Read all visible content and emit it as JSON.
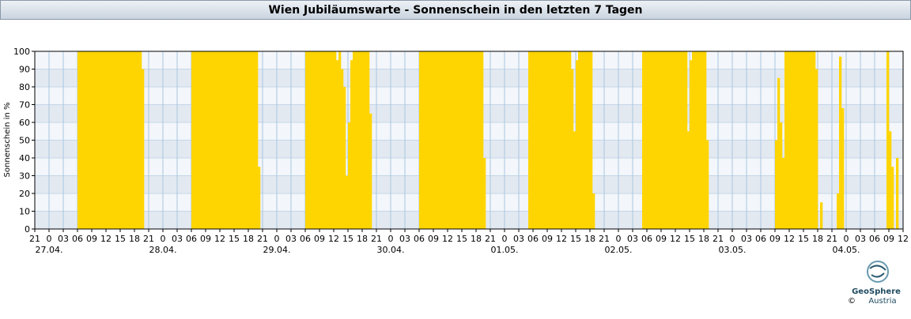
{
  "chart_data": {
    "type": "bar",
    "title": "Wien Jubiläumswarte - Sonnenschein in den letzten 7 Tagen",
    "y_label": "Sonnenschein in %",
    "color": "#ffd500",
    "grid": true,
    "ylim": [
      0,
      100
    ],
    "yticks": [
      0,
      10,
      20,
      30,
      40,
      50,
      60,
      70,
      80,
      90,
      100
    ],
    "xlim": [
      -3,
      180
    ],
    "xticks": [
      {
        "value": -3,
        "label": "21"
      },
      0,
      {
        "value": 3,
        "label": "03"
      },
      {
        "value": 6,
        "label": "06"
      },
      {
        "value": 9,
        "label": "09"
      },
      {
        "value": 12,
        "label": "12"
      },
      {
        "value": 15,
        "label": "15"
      },
      {
        "value": 18,
        "label": "18"
      },
      {
        "value": 21,
        "label": "21"
      },
      {
        "value": 24,
        "label": "0"
      },
      {
        "value": 27,
        "label": "03"
      },
      {
        "value": 30,
        "label": "06"
      },
      {
        "value": 33,
        "label": "09"
      },
      {
        "value": 36,
        "label": "12"
      },
      {
        "value": 39,
        "label": "15"
      },
      {
        "value": 42,
        "label": "18"
      },
      {
        "value": 45,
        "label": "21"
      },
      {
        "value": 48,
        "label": "0"
      },
      {
        "value": 51,
        "label": "03"
      },
      {
        "value": 54,
        "label": "06"
      },
      {
        "value": 57,
        "label": "09"
      },
      {
        "value": 60,
        "label": "12"
      },
      {
        "value": 63,
        "label": "15"
      },
      {
        "value": 66,
        "label": "18"
      },
      {
        "value": 69,
        "label": "21"
      },
      {
        "value": 72,
        "label": "0"
      },
      {
        "value": 75,
        "label": "03"
      },
      {
        "value": 78,
        "label": "06"
      },
      {
        "value": 81,
        "label": "09"
      },
      {
        "value": 84,
        "label": "12"
      },
      {
        "value": 87,
        "label": "15"
      },
      {
        "value": 90,
        "label": "18"
      },
      {
        "value": 93,
        "label": "21"
      },
      {
        "value": 96,
        "label": "0"
      },
      {
        "value": 99,
        "label": "03"
      },
      {
        "value": 102,
        "label": "06"
      },
      {
        "value": 105,
        "label": "09"
      },
      {
        "value": 108,
        "label": "12"
      },
      {
        "value": 111,
        "label": "15"
      },
      {
        "value": 114,
        "label": "18"
      },
      {
        "value": 117,
        "label": "21"
      },
      {
        "value": 120,
        "label": "0"
      },
      {
        "value": 123,
        "label": "03"
      },
      {
        "value": 126,
        "label": "06"
      },
      {
        "value": 129,
        "label": "09"
      },
      {
        "value": 132,
        "label": "12"
      },
      {
        "value": 135,
        "label": "15"
      },
      {
        "value": 138,
        "label": "18"
      },
      {
        "value": 141,
        "label": "21"
      },
      {
        "value": 144,
        "label": "0"
      },
      {
        "value": 147,
        "label": "03"
      },
      {
        "value": 150,
        "label": "06"
      },
      {
        "value": 153,
        "label": "09"
      },
      {
        "value": 156,
        "label": "12"
      },
      {
        "value": 159,
        "label": "15"
      },
      {
        "value": 162,
        "label": "18"
      },
      {
        "value": 165,
        "label": "21"
      },
      {
        "value": 168,
        "label": "0"
      },
      {
        "value": 171,
        "label": "03"
      },
      {
        "value": 174,
        "label": "06"
      },
      {
        "value": 177,
        "label": "09"
      },
      {
        "value": 180,
        "label": "12"
      }
    ],
    "date_labels": [
      {
        "value": 0,
        "label": "27.04."
      },
      {
        "value": 24,
        "label": "28.04."
      },
      {
        "value": 48,
        "label": "29.04."
      },
      {
        "value": 72,
        "label": "30.04."
      },
      {
        "value": 96,
        "label": "01.05."
      },
      {
        "value": 120,
        "label": "02.05."
      },
      {
        "value": 144,
        "label": "03.05."
      },
      {
        "value": 168,
        "label": "04.05."
      }
    ],
    "x": [
      6,
      6.5,
      7,
      7.5,
      8,
      8.5,
      9,
      9.5,
      10,
      10.5,
      11,
      11.5,
      12,
      12.5,
      13,
      13.5,
      14,
      14.5,
      15,
      15.5,
      16,
      16.5,
      17,
      17.5,
      18,
      18.5,
      19,
      19.5,
      30,
      30.5,
      31,
      31.5,
      32,
      32.5,
      33,
      33.5,
      34,
      34.5,
      35,
      35.5,
      36,
      36.5,
      37,
      37.5,
      38,
      38.5,
      39,
      39.5,
      40,
      40.5,
      41,
      41.5,
      42,
      42.5,
      43,
      43.5,
      44,
      54,
      54.5,
      55,
      55.5,
      56,
      56.5,
      57,
      57.5,
      58,
      58.5,
      59,
      59.5,
      60,
      60.5,
      61,
      61.5,
      62,
      62.5,
      63,
      63.5,
      64,
      64.5,
      65,
      65.5,
      66,
      66.5,
      67,
      67.5,
      78,
      78.5,
      79,
      79.5,
      80,
      80.5,
      81,
      81.5,
      82,
      82.5,
      83,
      83.5,
      84,
      84.5,
      85,
      85.5,
      86,
      86.5,
      87,
      87.5,
      88,
      88.5,
      89,
      89.5,
      90,
      90.5,
      91,
      91.5,
      101,
      101.5,
      102,
      102.5,
      103,
      103.5,
      104,
      104.5,
      105,
      105.5,
      106,
      106.5,
      107,
      107.5,
      108,
      108.5,
      109,
      109.5,
      110,
      110.5,
      111,
      111.5,
      112,
      112.5,
      113,
      113.5,
      114,
      114.5,
      125,
      125.5,
      126,
      126.5,
      127,
      127.5,
      128,
      128.5,
      129,
      129.5,
      130,
      130.5,
      131,
      131.5,
      132,
      132.5,
      133,
      133.5,
      134,
      134.5,
      135,
      135.5,
      136,
      136.5,
      137,
      137.5,
      138,
      138.5,
      153,
      153.5,
      154,
      154.5,
      155,
      155.5,
      156,
      156.5,
      157,
      157.5,
      158,
      158.5,
      159,
      159.5,
      160,
      160.5,
      161,
      161.5,
      162.5,
      166,
      166.5,
      167,
      176.5,
      177,
      177.5,
      178.5
    ],
    "values": [
      100,
      100,
      100,
      100,
      100,
      100,
      100,
      100,
      100,
      100,
      100,
      100,
      100,
      100,
      100,
      100,
      100,
      100,
      100,
      100,
      100,
      100,
      100,
      100,
      100,
      100,
      100,
      90,
      100,
      100,
      100,
      100,
      100,
      100,
      100,
      100,
      100,
      100,
      100,
      100,
      100,
      100,
      100,
      100,
      100,
      100,
      100,
      100,
      100,
      100,
      100,
      100,
      100,
      100,
      100,
      100,
      35,
      100,
      100,
      100,
      100,
      100,
      100,
      100,
      100,
      100,
      100,
      100,
      100,
      100,
      95,
      100,
      90,
      80,
      30,
      60,
      95,
      100,
      100,
      100,
      100,
      100,
      100,
      100,
      65,
      100,
      100,
      100,
      100,
      100,
      100,
      100,
      100,
      100,
      100,
      100,
      100,
      100,
      100,
      100,
      100,
      100,
      100,
      100,
      100,
      100,
      100,
      100,
      100,
      100,
      100,
      100,
      40,
      100,
      100,
      100,
      100,
      100,
      100,
      100,
      100,
      100,
      100,
      100,
      100,
      100,
      100,
      100,
      100,
      100,
      100,
      90,
      55,
      95,
      100,
      100,
      100,
      100,
      100,
      100,
      20,
      100,
      100,
      100,
      100,
      100,
      100,
      100,
      100,
      100,
      100,
      100,
      100,
      100,
      100,
      100,
      100,
      100,
      100,
      100,
      55,
      95,
      100,
      100,
      100,
      100,
      100,
      100,
      50,
      50,
      85,
      60,
      40,
      100,
      100,
      100,
      100,
      100,
      100,
      100,
      100,
      100,
      100,
      100,
      100,
      100,
      90,
      15,
      20,
      97,
      68,
      100,
      55,
      35,
      40
    ]
  },
  "logo": {
    "name": "GeoSphere",
    "sub": "Austria",
    "copyright": "©"
  }
}
